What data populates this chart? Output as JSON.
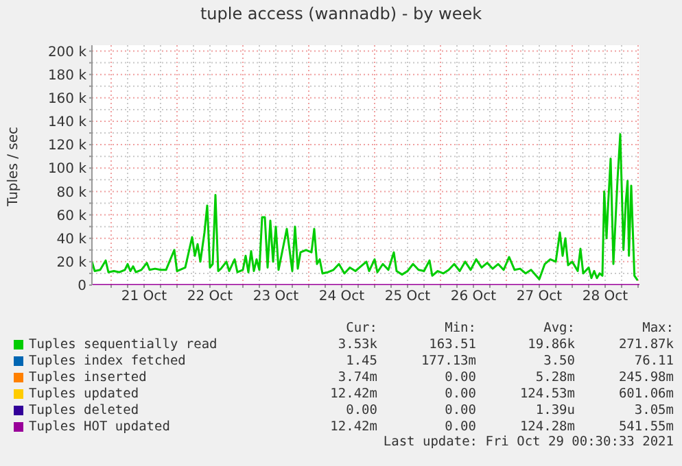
{
  "chart_data": {
    "type": "line",
    "title": "tuple access (wannadb) - by week",
    "ylabel": "Tuples / sec",
    "legend": "bottom",
    "grid": true,
    "xlim": [
      "2021-10-20T17:00",
      "2021-10-29T00:30"
    ],
    "xticks": [
      {
        "value": "2021-10-21T00:00",
        "label": null
      },
      {
        "value": "2021-10-21T06:00",
        "label": null
      },
      {
        "value": "2021-10-21T12:00",
        "label": "21 Oct"
      },
      {
        "value": "2021-10-21T18:00",
        "label": null
      },
      {
        "value": "2021-10-22T00:00",
        "label": null
      },
      {
        "value": "2021-10-22T06:00",
        "label": null
      },
      {
        "value": "2021-10-22T12:00",
        "label": "22 Oct"
      },
      {
        "value": "2021-10-22T18:00",
        "label": null
      },
      {
        "value": "2021-10-23T00:00",
        "label": null
      },
      {
        "value": "2021-10-23T06:00",
        "label": null
      },
      {
        "value": "2021-10-23T12:00",
        "label": "23 Oct"
      },
      {
        "value": "2021-10-23T18:00",
        "label": null
      },
      {
        "value": "2021-10-24T00:00",
        "label": null
      },
      {
        "value": "2021-10-24T06:00",
        "label": null
      },
      {
        "value": "2021-10-24T12:00",
        "label": "24 Oct"
      },
      {
        "value": "2021-10-24T18:00",
        "label": null
      },
      {
        "value": "2021-10-25T00:00",
        "label": null
      },
      {
        "value": "2021-10-25T06:00",
        "label": null
      },
      {
        "value": "2021-10-25T12:00",
        "label": "25 Oct"
      },
      {
        "value": "2021-10-25T18:00",
        "label": null
      },
      {
        "value": "2021-10-26T00:00",
        "label": null
      },
      {
        "value": "2021-10-26T06:00",
        "label": null
      },
      {
        "value": "2021-10-26T12:00",
        "label": "26 Oct"
      },
      {
        "value": "2021-10-26T18:00",
        "label": null
      },
      {
        "value": "2021-10-27T00:00",
        "label": null
      },
      {
        "value": "2021-10-27T06:00",
        "label": null
      },
      {
        "value": "2021-10-27T12:00",
        "label": "27 Oct"
      },
      {
        "value": "2021-10-27T18:00",
        "label": null
      },
      {
        "value": "2021-10-28T00:00",
        "label": null
      },
      {
        "value": "2021-10-28T06:00",
        "label": null
      },
      {
        "value": "2021-10-28T12:00",
        "label": "28 Oct"
      },
      {
        "value": "2021-10-28T18:00",
        "label": null
      },
      {
        "value": "2021-10-29T00:00",
        "label": null
      }
    ],
    "ylim": [
      0,
      205000
    ],
    "yticks": [
      0,
      {
        "value": 10000,
        "label": null
      },
      {
        "value": 20000,
        "label": "20 k"
      },
      {
        "value": 30000,
        "label": null
      },
      {
        "value": 40000,
        "label": "40 k"
      },
      {
        "value": 50000,
        "label": null
      },
      {
        "value": 60000,
        "label": "60 k"
      },
      {
        "value": 70000,
        "label": null
      },
      {
        "value": 80000,
        "label": "80 k"
      },
      {
        "value": 90000,
        "label": null
      },
      {
        "value": 100000,
        "label": "100 k"
      },
      {
        "value": 110000,
        "label": null
      },
      {
        "value": 120000,
        "label": "120 k"
      },
      {
        "value": 130000,
        "label": null
      },
      {
        "value": 140000,
        "label": "140 k"
      },
      {
        "value": 150000,
        "label": null
      },
      {
        "value": 160000,
        "label": "160 k"
      },
      {
        "value": 170000,
        "label": null
      },
      {
        "value": 180000,
        "label": "180 k"
      },
      {
        "value": 190000,
        "label": null
      },
      {
        "value": 200000,
        "label": "200 k"
      }
    ],
    "series": [
      {
        "name": "Tuples sequentially read",
        "color": "#00cc00",
        "x": [
          "2021-10-20T17:00",
          "2021-10-20T18:00",
          "2021-10-20T20:00",
          "2021-10-20T22:00",
          "2021-10-20T23:00",
          "2021-10-21T01:00",
          "2021-10-21T03:00",
          "2021-10-21T05:00",
          "2021-10-21T06:00",
          "2021-10-21T07:00",
          "2021-10-21T08:00",
          "2021-10-21T09:00",
          "2021-10-21T11:00",
          "2021-10-21T13:00",
          "2021-10-21T14:00",
          "2021-10-21T16:00",
          "2021-10-21T18:00",
          "2021-10-21T20:00",
          "2021-10-21T23:00",
          "2021-10-22T00:00",
          "2021-10-22T01:00",
          "2021-10-22T03:00",
          "2021-10-22T05:30",
          "2021-10-22T06:30",
          "2021-10-22T07:30",
          "2021-10-22T08:30",
          "2021-10-22T10:00",
          "2021-10-22T11:00",
          "2021-10-22T12:00",
          "2021-10-22T13:00",
          "2021-10-22T14:00",
          "2021-10-22T15:00",
          "2021-10-22T16:00",
          "2021-10-22T18:00",
          "2021-10-22T19:00",
          "2021-10-22T21:00",
          "2021-10-22T22:00",
          "2021-10-23T00:00",
          "2021-10-23T01:00",
          "2021-10-23T02:00",
          "2021-10-23T03:00",
          "2021-10-23T04:00",
          "2021-10-23T05:00",
          "2021-10-23T06:00",
          "2021-10-23T07:00",
          "2021-10-23T08:00",
          "2021-10-23T09:00",
          "2021-10-23T10:00",
          "2021-10-23T11:00",
          "2021-10-23T12:00",
          "2021-10-23T13:00",
          "2021-10-23T16:00",
          "2021-10-23T18:00",
          "2021-10-23T19:00",
          "2021-10-23T20:00",
          "2021-10-23T21:00",
          "2021-10-23T23:00",
          "2021-10-24T01:00",
          "2021-10-24T02:00",
          "2021-10-24T03:00",
          "2021-10-24T04:00",
          "2021-10-24T05:00",
          "2021-10-24T07:00",
          "2021-10-24T09:00",
          "2021-10-24T11:00",
          "2021-10-24T13:00",
          "2021-10-24T15:00",
          "2021-10-24T17:00",
          "2021-10-24T19:00",
          "2021-10-24T21:00",
          "2021-10-24T22:00",
          "2021-10-25T00:00",
          "2021-10-25T01:00",
          "2021-10-25T03:00",
          "2021-10-25T05:00",
          "2021-10-25T07:00",
          "2021-10-25T08:00",
          "2021-10-25T10:00",
          "2021-10-25T12:00",
          "2021-10-25T14:00",
          "2021-10-25T16:00",
          "2021-10-25T18:00",
          "2021-10-25T20:00",
          "2021-10-25T21:00",
          "2021-10-25T23:00",
          "2021-10-26T01:00",
          "2021-10-26T03:00",
          "2021-10-26T05:00",
          "2021-10-26T07:00",
          "2021-10-26T09:00",
          "2021-10-26T11:00",
          "2021-10-26T13:00",
          "2021-10-26T15:00",
          "2021-10-26T17:00",
          "2021-10-26T19:00",
          "2021-10-26T21:00",
          "2021-10-26T23:00",
          "2021-10-27T01:00",
          "2021-10-27T03:00",
          "2021-10-27T05:00",
          "2021-10-27T07:00",
          "2021-10-27T09:00",
          "2021-10-27T12:00",
          "2021-10-27T14:00",
          "2021-10-27T16:00",
          "2021-10-27T18:00",
          "2021-10-27T19:30",
          "2021-10-27T20:30",
          "2021-10-27T21:30",
          "2021-10-27T22:30",
          "2021-10-28T00:00",
          "2021-10-28T02:00",
          "2021-10-28T03:00",
          "2021-10-28T04:00",
          "2021-10-28T06:00",
          "2021-10-28T07:00",
          "2021-10-28T08:00",
          "2021-10-28T09:00",
          "2021-10-28T10:00",
          "2021-10-28T11:00",
          "2021-10-28T11:40",
          "2021-10-28T12:30",
          "2021-10-28T13:00",
          "2021-10-28T14:00",
          "2021-10-28T15:00",
          "2021-10-28T16:30",
          "2021-10-28T17:30",
          "2021-10-28T18:40",
          "2021-10-28T19:30",
          "2021-10-28T20:10",
          "2021-10-28T20:40",
          "2021-10-28T21:30",
          "2021-10-28T22:40",
          "2021-10-28T23:50"
        ],
        "values": [
          20000,
          12000,
          13000,
          21000,
          11000,
          12000,
          11000,
          13000,
          18000,
          12000,
          16000,
          11000,
          13000,
          19000,
          13000,
          14000,
          13000,
          13000,
          30000,
          12000,
          13000,
          15000,
          41000,
          25000,
          35000,
          20000,
          45000,
          68000,
          15000,
          18000,
          77000,
          12000,
          14000,
          20000,
          12000,
          22000,
          11000,
          13000,
          25000,
          11000,
          29000,
          12000,
          22000,
          13000,
          58000,
          58000,
          15000,
          55000,
          20000,
          50000,
          13000,
          48000,
          12000,
          50000,
          14000,
          28000,
          30000,
          28000,
          48000,
          18000,
          22000,
          10000,
          11000,
          13000,
          18000,
          10000,
          15000,
          12000,
          16000,
          20000,
          12000,
          22000,
          11000,
          18000,
          13000,
          28000,
          12000,
          9000,
          12000,
          18000,
          13000,
          12000,
          21000,
          8000,
          12000,
          10000,
          13000,
          18000,
          12000,
          20000,
          13000,
          22000,
          15000,
          19000,
          14000,
          18000,
          13000,
          24000,
          13000,
          14000,
          10000,
          13000,
          5000,
          18000,
          22000,
          20000,
          45000,
          25000,
          40000,
          17000,
          20000,
          12000,
          31000,
          10000,
          15000,
          6000,
          12000,
          6000,
          10000,
          8000,
          80000,
          40000,
          65000,
          108000,
          18000,
          90000,
          129000,
          30000,
          70000,
          89000,
          25000,
          85000,
          8000,
          4000
        ]
      },
      {
        "name": "Tuples index fetched",
        "color": "#0066b3"
      },
      {
        "name": "Tuples inserted",
        "color": "#ff8000"
      },
      {
        "name": "Tuples updated",
        "color": "#ffcc00"
      },
      {
        "name": "Tuples deleted",
        "color": "#330099"
      },
      {
        "name": "Tuples HOT updated",
        "color": "#990099",
        "x": [
          "2021-10-20T17:00",
          "2021-10-29T00:30"
        ],
        "values": [
          0,
          0
        ]
      }
    ],
    "annotations": [
      "Cur:",
      "Min:",
      "Avg:",
      "Max:",
      "3.53k",
      "163.51",
      "19.86k",
      "271.87k",
      "1.45",
      "177.13m",
      "3.50",
      "76.11",
      "3.74m",
      "0.00",
      "5.28m",
      "245.98m",
      "12.42m",
      "0.00",
      "124.53m",
      "601.06m",
      "0.00",
      "0.00",
      "1.39u",
      "3.05m",
      "12.42m",
      "0.00",
      "124.28m",
      "541.55m",
      "Last update: Fri Oct 29 00:30:33 2021"
    ]
  }
}
